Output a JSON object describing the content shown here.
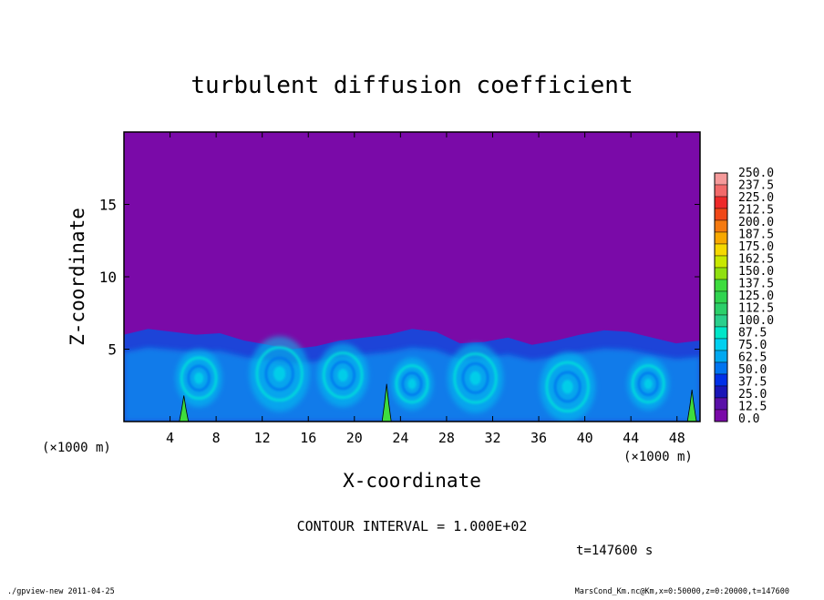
{
  "chart_data": {
    "type": "heatmap",
    "title": "turbulent diffusion coefficient",
    "xlabel": "X-coordinate",
    "ylabel": "Z-coordinate",
    "x_unit_left": "(×1000 m)",
    "x_unit_right": "(×1000 m)",
    "xlim": [
      0,
      50
    ],
    "ylim": [
      0,
      20
    ],
    "x_ticks": [
      "4",
      "8",
      "12",
      "16",
      "20",
      "24",
      "28",
      "32",
      "36",
      "40",
      "44",
      "48"
    ],
    "y_ticks": [
      "5",
      "10",
      "15"
    ],
    "colorbar_levels": [
      "250.0",
      "237.5",
      "225.0",
      "212.5",
      "200.0",
      "187.5",
      "175.0",
      "162.5",
      "150.0",
      "137.5",
      "125.0",
      "112.5",
      "100.0",
      "87.5",
      "75.0",
      "62.5",
      "50.0",
      "37.5",
      "25.0",
      "12.5",
      "0.0"
    ],
    "colorbar_colors": [
      "#f59a9a",
      "#f26a6a",
      "#ee2a2a",
      "#f04818",
      "#f57a10",
      "#f7a800",
      "#f5d800",
      "#c8e800",
      "#90e010",
      "#3edc3e",
      "#30d450",
      "#2ccf6a",
      "#2acf8c",
      "#00e6c8",
      "#00d0f0",
      "#00a8f0",
      "#0074f0",
      "#0030e8",
      "#1a16b8",
      "#5a10a8",
      "#7a0aa8"
    ],
    "background_color": "#7a0aa8",
    "contour_interval": "CONTOUR INTERVAL = 1.000E+02",
    "time_label": "t=147600 s",
    "footer_left": "./gpview-new   2011-04-25",
    "footer_right": "MarsCond_Km.nc@Km,x=0:50000,z=0:20000,t=147600",
    "boundary_layer_top_z": [
      6.0,
      6.4,
      6.2,
      6.0,
      6.1,
      5.6,
      5.3,
      5.0,
      5.2,
      5.6,
      5.8,
      6.0,
      6.4,
      6.2,
      5.4,
      5.5,
      5.8,
      5.3,
      5.6,
      6.0,
      6.3,
      6.2,
      5.8,
      5.4,
      5.6
    ],
    "vortices": [
      {
        "x": 6.5,
        "z": 3.0,
        "r": 2.0
      },
      {
        "x": 13.5,
        "z": 3.3,
        "r": 2.6
      },
      {
        "x": 19.0,
        "z": 3.2,
        "r": 2.2
      },
      {
        "x": 25.0,
        "z": 2.6,
        "r": 1.8
      },
      {
        "x": 30.5,
        "z": 3.0,
        "r": 2.4
      },
      {
        "x": 38.5,
        "z": 2.4,
        "r": 2.4
      },
      {
        "x": 45.5,
        "z": 2.6,
        "r": 1.8
      }
    ],
    "plumes": [
      {
        "x": 5.2,
        "height": 1.8
      },
      {
        "x": 22.8,
        "height": 2.6
      },
      {
        "x": 49.3,
        "height": 2.2
      }
    ]
  }
}
